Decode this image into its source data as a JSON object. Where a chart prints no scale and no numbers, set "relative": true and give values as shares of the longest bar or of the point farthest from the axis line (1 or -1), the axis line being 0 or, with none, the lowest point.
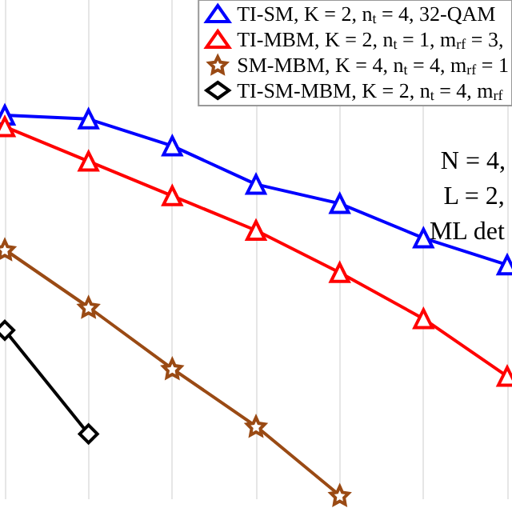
{
  "chart_data": {
    "type": "line",
    "relative": true,
    "grid": true,
    "legend": "top right",
    "categories": [
      null,
      null,
      null,
      null,
      null,
      null,
      null
    ],
    "series": [
      {
        "name": "TI-SM, K = 2, n$_{t}$ = 4, 32-QAM",
        "color": "#0000ff",
        "marker": "triangle",
        "values": [
          1,
          0.99,
          0.92,
          0.82,
          0.77,
          0.68,
          0.61
        ]
      },
      {
        "name": "TI-MBM, K = 2, n$_{t}$ = 1, m$_{rf}$ = 3,",
        "color": "#ff0000",
        "marker": "triangle",
        "values": [
          0.97,
          0.88,
          0.79,
          0.7,
          0.59,
          0.47,
          0.32
        ]
      },
      {
        "name": "SM-MBM, K = 4, n$_{t}$ = 4, m$_{rf}$ = 1",
        "color": "#9a4a14",
        "marker": "star",
        "values": [
          0.65,
          0.5,
          0.34,
          0.19,
          0.01,
          null,
          null
        ]
      },
      {
        "name": "TI-SM-MBM, K = 2, n$_{t}$ = 4, m$_{rf}$",
        "color": "#000000",
        "marker": "diamond",
        "values": [
          0.44,
          0.17,
          null,
          null,
          null,
          null,
          null
        ]
      }
    ],
    "annotations": [
      "N = 4,",
      "L = 2,",
      "ML det"
    ]
  }
}
